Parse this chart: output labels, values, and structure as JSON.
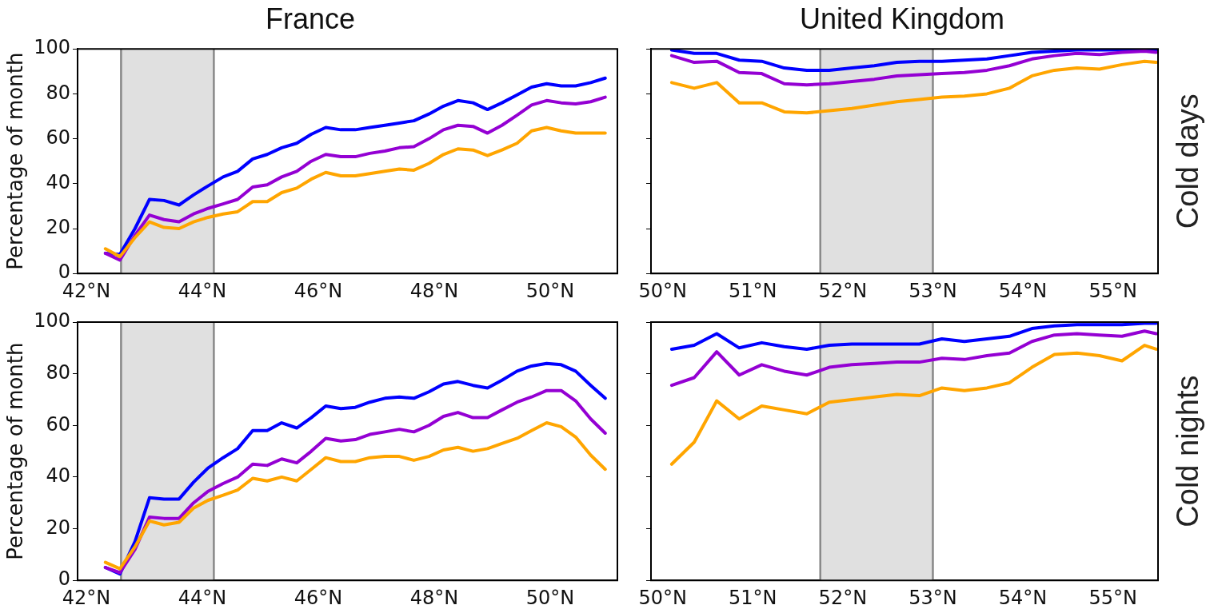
{
  "chart_data": [
    {
      "type": "line",
      "title": "France",
      "ylabel": "Percentage of month",
      "marker": "none",
      "xlim": [
        41.85,
        51.16
      ],
      "ylim": [
        0,
        100
      ],
      "xticks": [
        {
          "value": 42,
          "label": "42°N"
        },
        {
          "value": 44,
          "label": "44°N"
        },
        {
          "value": 46,
          "label": "46°N"
        },
        {
          "value": 48,
          "label": "48°N"
        },
        {
          "value": 50,
          "label": "50°N"
        }
      ],
      "yticks": [
        0,
        20,
        40,
        60,
        80,
        100
      ],
      "bands": [
        {
          "axis": "x",
          "from": 42.6,
          "to": 44.2,
          "color": "#e0e0e0"
        }
      ],
      "ref_lines": [
        {
          "axis": "x",
          "value": 42.6,
          "color": "#888888"
        },
        {
          "axis": "x",
          "value": 44.2,
          "color": "#888888"
        }
      ],
      "x": [
        42.33,
        42.58,
        42.84,
        43.09,
        43.34,
        43.6,
        43.85,
        44.1,
        44.36,
        44.61,
        44.87,
        45.12,
        45.37,
        45.63,
        45.88,
        46.13,
        46.39,
        46.64,
        46.89,
        47.15,
        47.4,
        47.65,
        47.91,
        48.16,
        48.41,
        48.67,
        48.92,
        49.17,
        49.43,
        49.68,
        49.94,
        50.19,
        50.44,
        50.7,
        50.95
      ],
      "series": [
        {
          "color": "#ffa500",
          "values": [
            11,
            7.5,
            16,
            23,
            20.5,
            20,
            23,
            25,
            26.5,
            27.5,
            32,
            32,
            36,
            38,
            42,
            45,
            43.5,
            43.5,
            44.5,
            45.5,
            46.5,
            46,
            49,
            53,
            55.5,
            55,
            52.5,
            55,
            58,
            63.5,
            65,
            63.5,
            62.5,
            62.5,
            62.5
          ]
        },
        {
          "color": "#9400d3",
          "values": [
            9,
            6,
            17,
            26,
            24,
            23,
            26.5,
            29,
            31,
            33,
            38.5,
            39.5,
            43,
            45.5,
            50,
            53,
            52,
            52,
            53.5,
            54.5,
            56,
            56.5,
            60,
            64,
            66,
            65.5,
            62.5,
            66,
            70.5,
            75,
            77,
            76,
            75.5,
            76.5,
            78.5
          ]
        },
        {
          "color": "#0000ff",
          "values": [
            9,
            8.5,
            20,
            33,
            32.5,
            30.5,
            35,
            39,
            43,
            45.5,
            51,
            53,
            56,
            58,
            62,
            65,
            64,
            64,
            65,
            66,
            67,
            68,
            71,
            74.5,
            77,
            76,
            73,
            76,
            79.5,
            83,
            84.5,
            83.5,
            83.5,
            85,
            87
          ]
        }
      ]
    },
    {
      "type": "line",
      "title": "United Kingdom",
      "annotations": [
        "Cold days"
      ],
      "marker": "none",
      "tick_labels": "x",
      "xlim": [
        49.87,
        55.5
      ],
      "ylim": [
        0,
        100
      ],
      "xticks": [
        {
          "value": 50,
          "label": "50°N"
        },
        {
          "value": 51,
          "label": "51°N"
        },
        {
          "value": 52,
          "label": "52°N"
        },
        {
          "value": 53,
          "label": "53°N"
        },
        {
          "value": 54,
          "label": "54°N"
        },
        {
          "value": 55,
          "label": "55°N"
        }
      ],
      "yticks": [
        0,
        20,
        40,
        60,
        80,
        100
      ],
      "bands": [
        {
          "axis": "x",
          "from": 51.75,
          "to": 53.0,
          "color": "#e0e0e0"
        }
      ],
      "ref_lines": [
        {
          "axis": "x",
          "value": 51.75,
          "color": "#888888"
        },
        {
          "axis": "x",
          "value": 53.0,
          "color": "#888888"
        }
      ],
      "x": [
        50.1,
        50.35,
        50.6,
        50.85,
        51.1,
        51.35,
        51.6,
        51.85,
        52.1,
        52.35,
        52.6,
        52.85,
        53.1,
        53.35,
        53.6,
        53.85,
        54.1,
        54.35,
        54.6,
        54.85,
        55.1,
        55.35,
        55.48
      ],
      "series": [
        {
          "color": "#ffa500",
          "values": [
            85,
            82.5,
            85,
            76,
            76,
            72,
            71.5,
            72.5,
            73.5,
            75,
            76.5,
            77.5,
            78.5,
            79,
            80,
            82.5,
            88,
            90.5,
            91.5,
            91,
            93,
            94.5,
            94
          ]
        },
        {
          "color": "#9400d3",
          "values": [
            97,
            94,
            94.5,
            89.5,
            89,
            84.5,
            84,
            84.5,
            85.5,
            86.5,
            88,
            88.5,
            89,
            89.5,
            90.5,
            92.5,
            95.5,
            97,
            98,
            97.5,
            98.5,
            99,
            98.5
          ]
        },
        {
          "color": "#0000ff",
          "values": [
            99.5,
            98,
            98,
            95,
            94.5,
            91.5,
            90.5,
            90.5,
            91.5,
            92.5,
            94,
            94.5,
            94.5,
            95,
            95.5,
            97,
            98.5,
            99,
            99.5,
            99.5,
            99.5,
            99.5,
            99.5
          ]
        }
      ]
    },
    {
      "type": "line",
      "ylabel": "Percentage of month",
      "marker": "none",
      "xlim": [
        41.85,
        51.16
      ],
      "ylim": [
        0,
        100
      ],
      "xticks": [
        {
          "value": 42,
          "label": "42°N"
        },
        {
          "value": 44,
          "label": "44°N"
        },
        {
          "value": 46,
          "label": "46°N"
        },
        {
          "value": 48,
          "label": "48°N"
        },
        {
          "value": 50,
          "label": "50°N"
        }
      ],
      "yticks": [
        0,
        20,
        40,
        60,
        80,
        100
      ],
      "bands": [
        {
          "axis": "x",
          "from": 42.6,
          "to": 44.2,
          "color": "#e0e0e0"
        }
      ],
      "ref_lines": [
        {
          "axis": "x",
          "value": 42.6,
          "color": "#888888"
        },
        {
          "axis": "x",
          "value": 44.2,
          "color": "#888888"
        }
      ],
      "x": [
        42.33,
        42.58,
        42.84,
        43.09,
        43.34,
        43.6,
        43.85,
        44.1,
        44.36,
        44.61,
        44.87,
        45.12,
        45.37,
        45.63,
        45.88,
        46.13,
        46.39,
        46.64,
        46.89,
        47.15,
        47.4,
        47.65,
        47.91,
        48.16,
        48.41,
        48.67,
        48.92,
        49.17,
        49.43,
        49.68,
        49.94,
        50.19,
        50.44,
        50.7,
        50.95
      ],
      "series": [
        {
          "color": "#ffa500",
          "values": [
            7,
            4.5,
            13,
            23,
            21.5,
            22.5,
            28,
            31,
            33,
            35,
            39.5,
            38.5,
            40,
            38.5,
            43,
            47.5,
            46,
            46,
            47.5,
            48,
            48,
            46.5,
            48,
            50.5,
            51.5,
            50,
            51,
            53,
            55,
            58,
            61,
            59.5,
            55.5,
            48.5,
            43
          ]
        },
        {
          "color": "#9400d3",
          "values": [
            5,
            3,
            12,
            24.5,
            24,
            24,
            30,
            34.5,
            37.5,
            40,
            45,
            44.5,
            47,
            45.5,
            50,
            55,
            54,
            54.5,
            56.5,
            57.5,
            58.5,
            57.5,
            60,
            63.5,
            65,
            63,
            63,
            66,
            69,
            71,
            73.5,
            73.5,
            69.5,
            62.5,
            57
          ]
        },
        {
          "color": "#0000ff",
          "values": [
            5,
            2.5,
            15,
            32,
            31.5,
            31.5,
            38,
            43.5,
            47.5,
            51,
            58,
            58,
            61,
            59,
            63,
            67.5,
            66.5,
            67,
            69,
            70.5,
            71,
            70.5,
            73,
            76,
            77,
            75.5,
            74.5,
            77.5,
            81,
            83,
            84,
            83.5,
            81,
            75.5,
            70.5
          ]
        }
      ]
    },
    {
      "type": "line",
      "annotations": [
        "Cold nights"
      ],
      "marker": "none",
      "tick_labels": "x",
      "xlim": [
        49.87,
        55.5
      ],
      "ylim": [
        0,
        100
      ],
      "xticks": [
        {
          "value": 50,
          "label": "50°N"
        },
        {
          "value": 51,
          "label": "51°N"
        },
        {
          "value": 52,
          "label": "52°N"
        },
        {
          "value": 53,
          "label": "53°N"
        },
        {
          "value": 54,
          "label": "54°N"
        },
        {
          "value": 55,
          "label": "55°N"
        }
      ],
      "yticks": [
        0,
        20,
        40,
        60,
        80,
        100
      ],
      "bands": [
        {
          "axis": "x",
          "from": 51.75,
          "to": 53.0,
          "color": "#e0e0e0"
        }
      ],
      "ref_lines": [
        {
          "axis": "x",
          "value": 51.75,
          "color": "#888888"
        },
        {
          "axis": "x",
          "value": 53.0,
          "color": "#888888"
        }
      ],
      "x": [
        50.1,
        50.35,
        50.6,
        50.85,
        51.1,
        51.35,
        51.6,
        51.85,
        52.1,
        52.35,
        52.6,
        52.85,
        53.1,
        53.35,
        53.6,
        53.85,
        54.1,
        54.35,
        54.6,
        54.85,
        55.1,
        55.35,
        55.48
      ],
      "series": [
        {
          "color": "#ffa500",
          "values": [
            45,
            53.5,
            69.5,
            62.5,
            67.5,
            66,
            64.5,
            69,
            70,
            71,
            72,
            71.5,
            74.5,
            73.5,
            74.5,
            76.5,
            82.5,
            87.5,
            88,
            87,
            85,
            91,
            89.5
          ]
        },
        {
          "color": "#9400d3",
          "values": [
            75.5,
            78.5,
            88.5,
            79.5,
            83.5,
            81,
            79.5,
            82.5,
            83.5,
            84,
            84.5,
            84.5,
            86,
            85.5,
            87,
            88,
            92.5,
            95,
            95.5,
            95,
            94.5,
            96.5,
            95.5
          ]
        },
        {
          "color": "#0000ff",
          "values": [
            89.5,
            91,
            95.5,
            90,
            92,
            90.5,
            89.5,
            91,
            91.5,
            91.5,
            91.5,
            91.5,
            93.5,
            92.5,
            93.5,
            94.5,
            97.5,
            98.5,
            99,
            99,
            99,
            99.5,
            99.5
          ]
        }
      ]
    }
  ]
}
